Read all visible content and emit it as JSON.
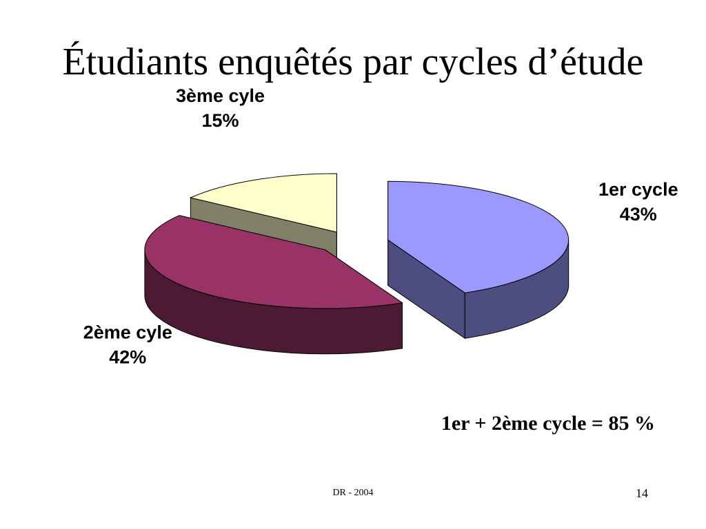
{
  "slide": {
    "title": "Étudiants enquêtés par cycles d’étude",
    "summary": "1er + 2ème cycle = 85 %",
    "footer": "DR - 2004",
    "page_number": "14"
  },
  "chart_data": {
    "type": "pie",
    "style": "3d-exploded",
    "title": "",
    "slices": [
      {
        "label": "1er cycle",
        "value": 43,
        "percent_label": "43%",
        "top_color": "#9999ff",
        "side_color": "#4d4d80"
      },
      {
        "label": "2ème cyle",
        "value": 42,
        "percent_label": "42%",
        "top_color": "#993366",
        "side_color": "#4d1a33"
      },
      {
        "label": "3ème cyle",
        "value": 15,
        "percent_label": "15%",
        "top_color": "#ffffcc",
        "side_color": "#808066"
      }
    ]
  }
}
